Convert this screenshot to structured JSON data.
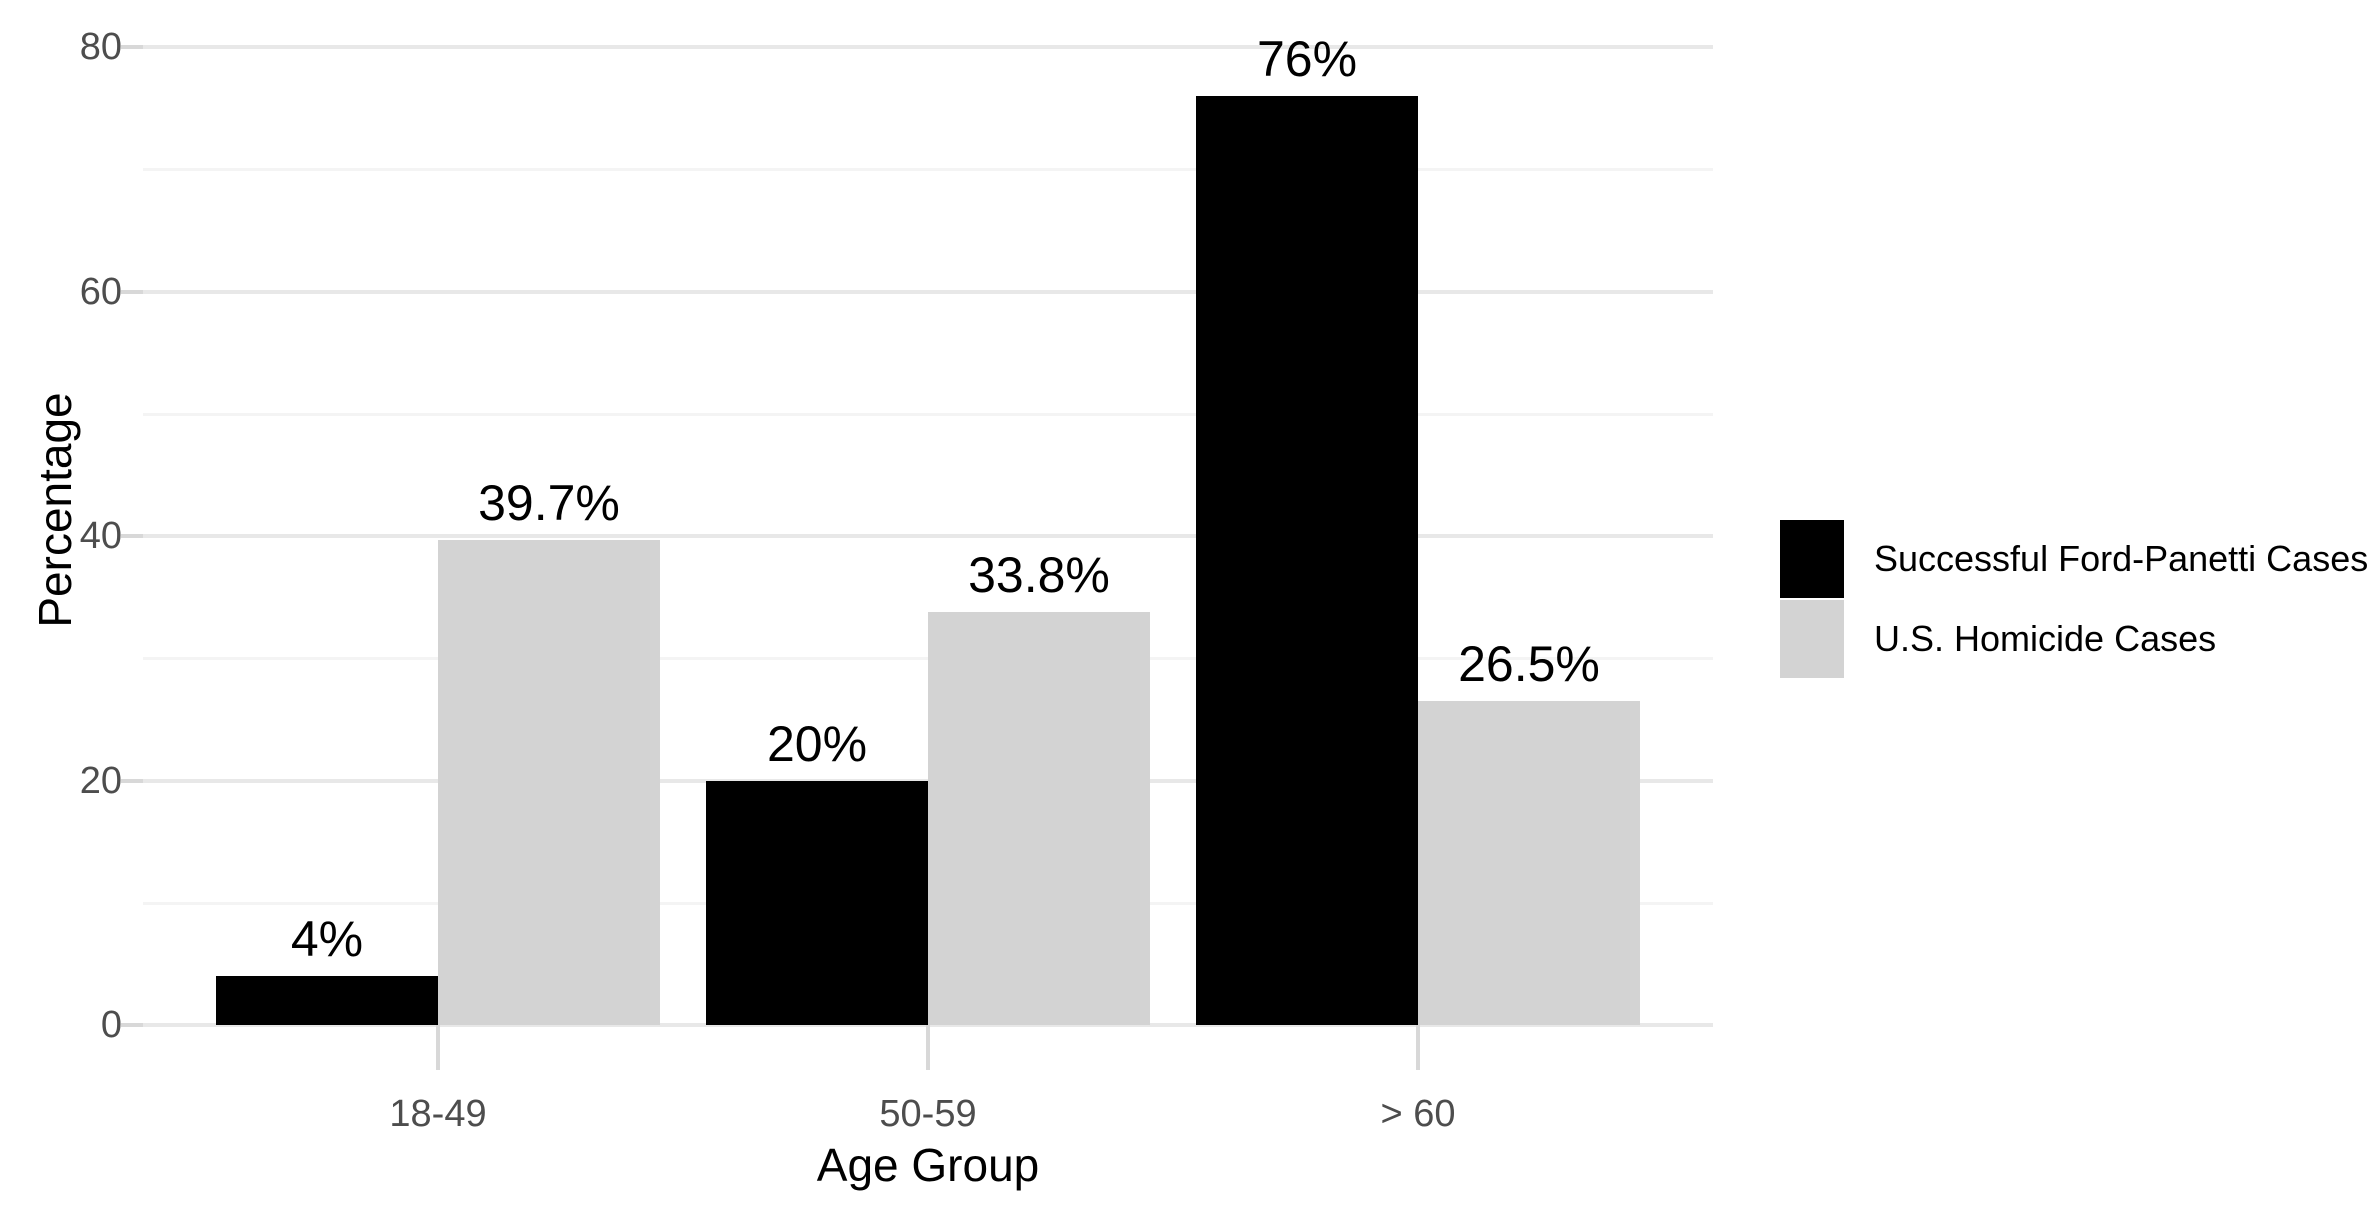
{
  "chart_data": {
    "type": "bar",
    "title": "",
    "categories": [
      "18-49",
      "50-59",
      "> 60"
    ],
    "series": [
      {
        "name": "Successful Ford-Panetti Cases",
        "color": "#000000",
        "values": [
          4,
          20,
          76
        ],
        "labels": [
          "4%",
          "20%",
          "76%"
        ]
      },
      {
        "name": "U.S. Homicide Cases",
        "color": "#d3d3d3",
        "values": [
          39.7,
          33.8,
          26.5
        ],
        "labels": [
          "39.7%",
          "33.8%",
          "26.5%"
        ]
      }
    ],
    "xlabel": "Age Group",
    "ylabel": "Percentage",
    "ylim": [
      0,
      80
    ],
    "yticks": [
      0,
      20,
      40,
      60,
      80
    ],
    "yminor": [
      10,
      30,
      50,
      70
    ],
    "grid": "horizontal-only",
    "background": "#ffffff",
    "gridline_color": "#e8e8e8",
    "tick_label_color": "#4d4d4d",
    "legend_position": "right"
  }
}
